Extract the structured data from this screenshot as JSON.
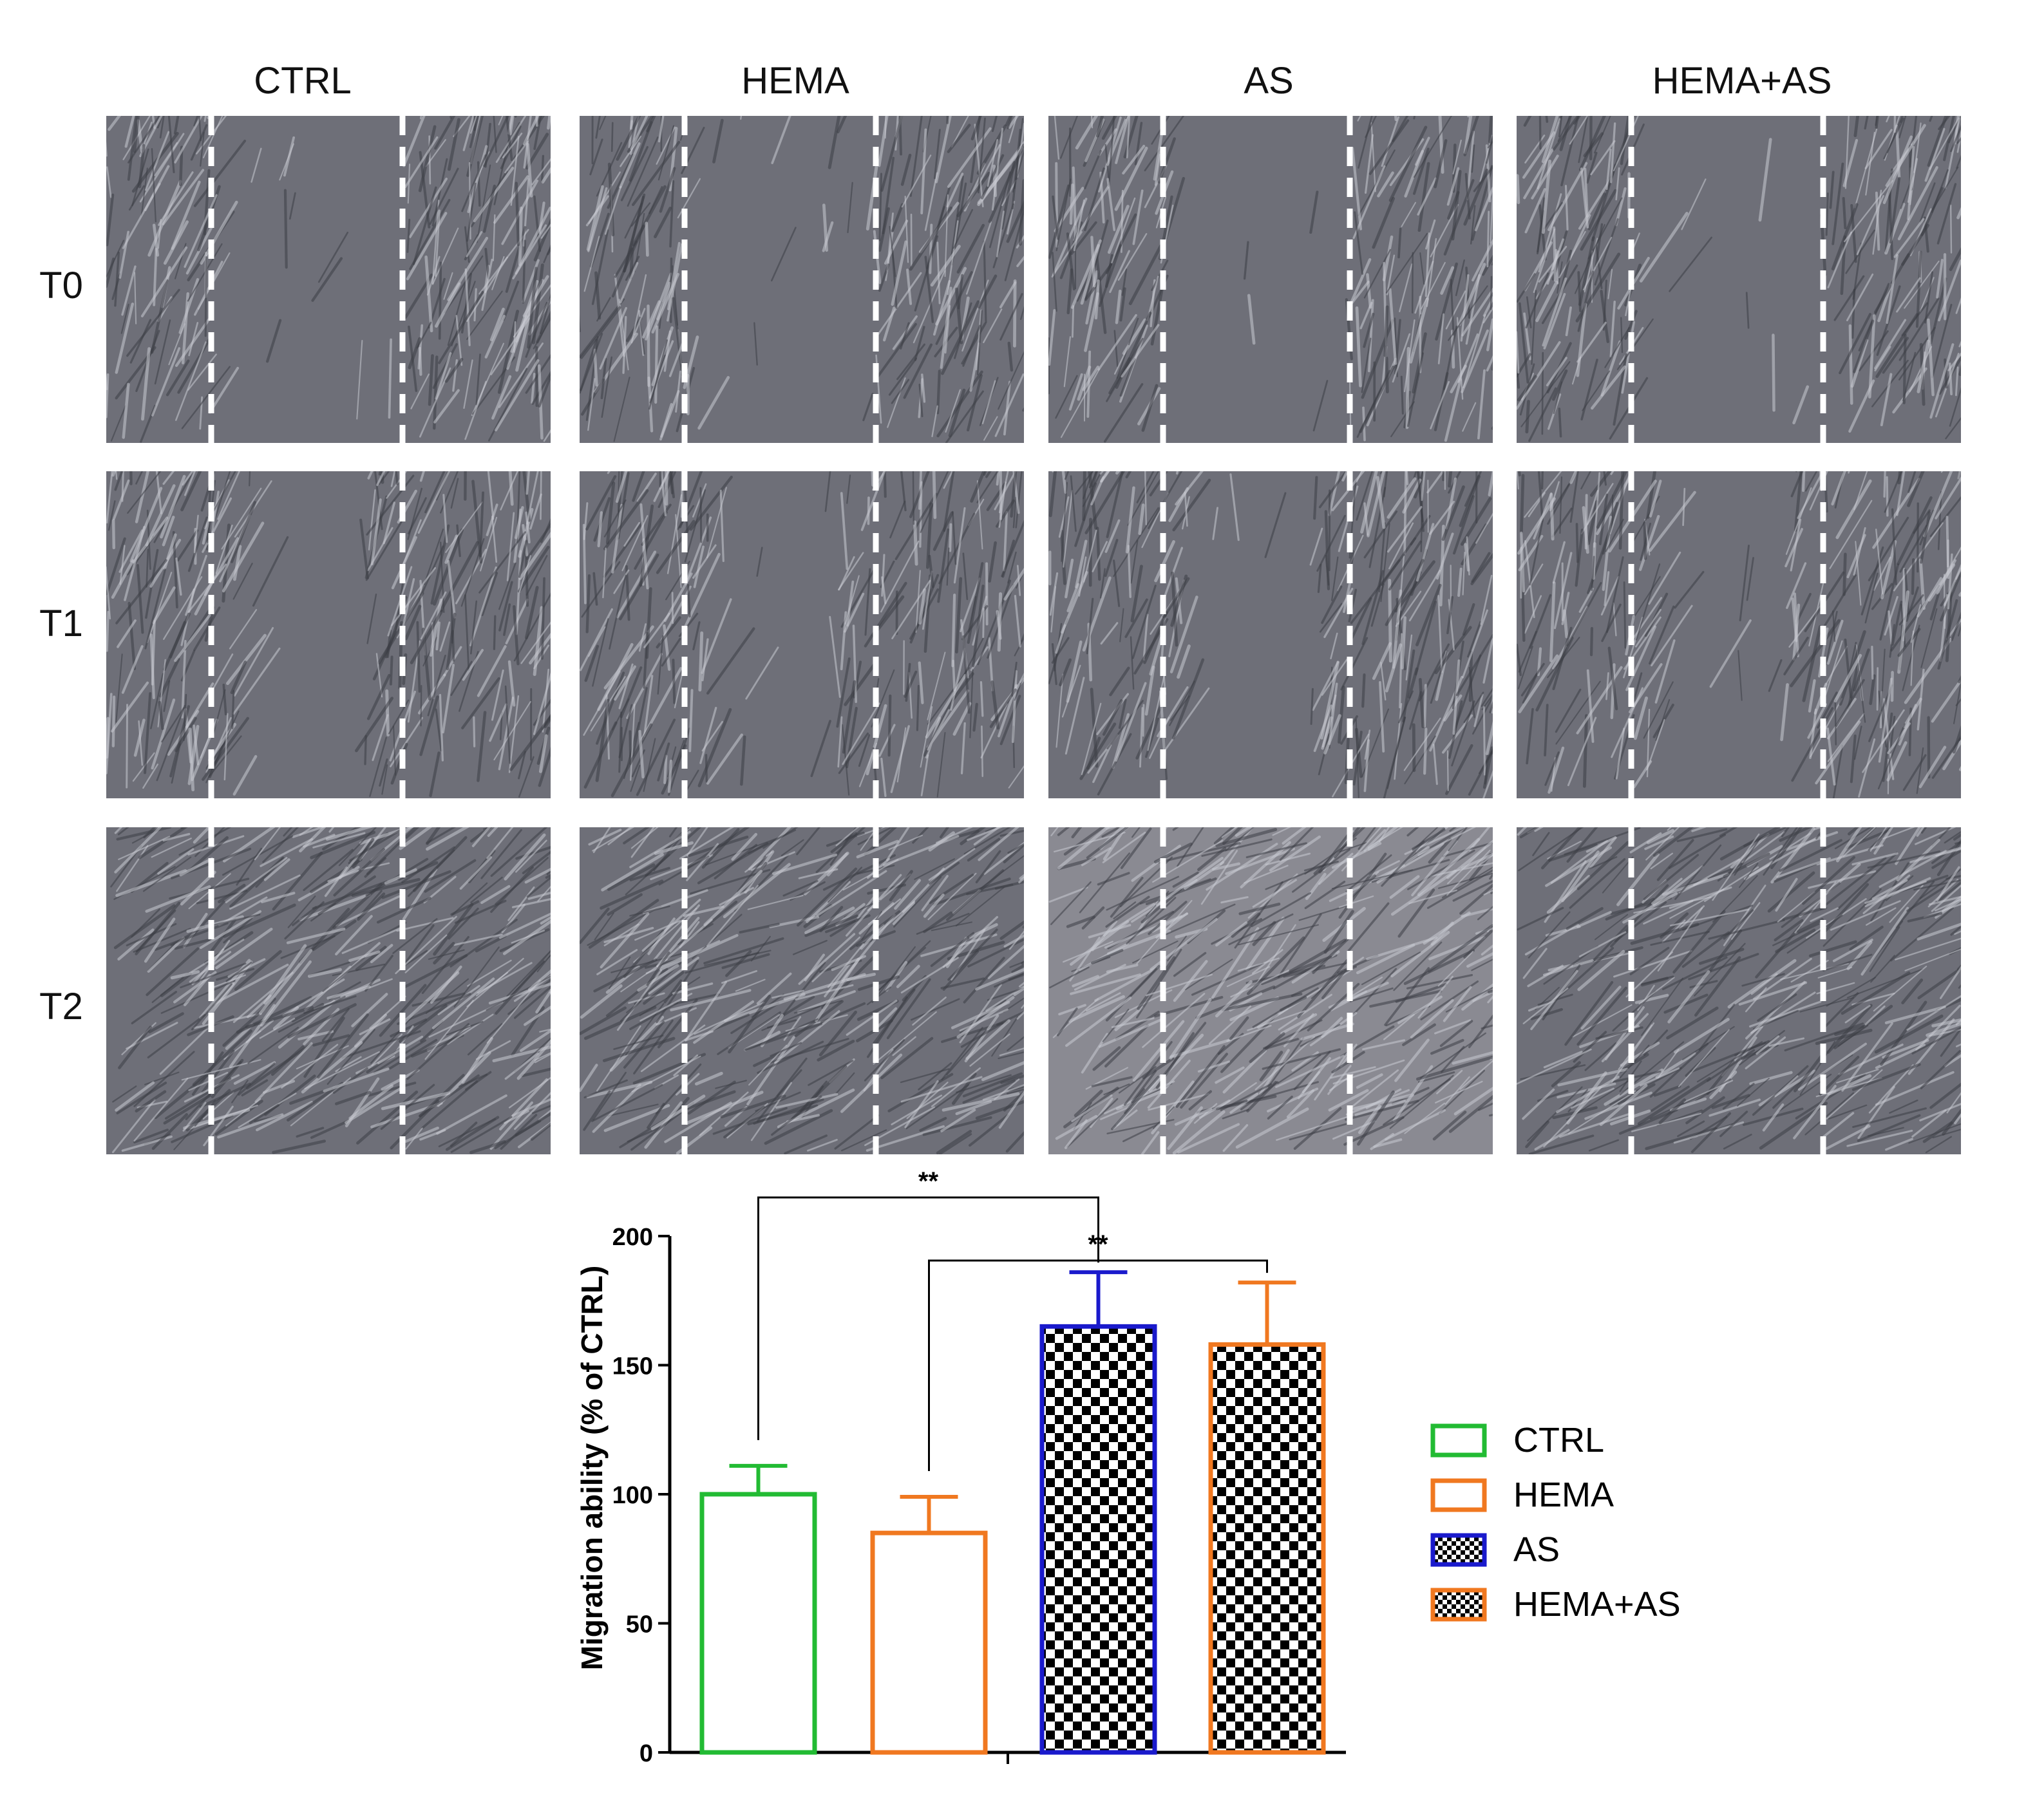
{
  "column_labels": [
    "CTRL",
    "HEMA",
    "AS",
    "HEMA+AS"
  ],
  "row_labels": [
    "T0",
    "T1",
    "T2"
  ],
  "chart_data": {
    "type": "bar",
    "categories": [
      "CTRL",
      "HEMA",
      "AS",
      "HEMA+AS"
    ],
    "values": [
      100,
      85,
      165,
      158
    ],
    "error": [
      11,
      14,
      21,
      24
    ],
    "ylabel": "Migration ability (% of CTRL)",
    "xlabel": "",
    "ylim": [
      0,
      200
    ],
    "yticks": [
      0,
      50,
      100,
      150,
      200
    ],
    "legend": {
      "placement": "right",
      "entries": [
        "CTRL",
        "HEMA",
        "AS",
        "HEMA+AS"
      ]
    },
    "bar_styles": [
      {
        "edge": "#22bb33",
        "fill": "none"
      },
      {
        "edge": "#f07820",
        "fill": "none"
      },
      {
        "edge": "#1a1acc",
        "fill": "checker"
      },
      {
        "edge": "#f07820",
        "fill": "checker"
      }
    ],
    "significance": [
      {
        "from": "CTRL",
        "to": "AS",
        "label": "**"
      },
      {
        "from": "HEMA",
        "to": "HEMA+AS",
        "label": "**"
      }
    ]
  }
}
